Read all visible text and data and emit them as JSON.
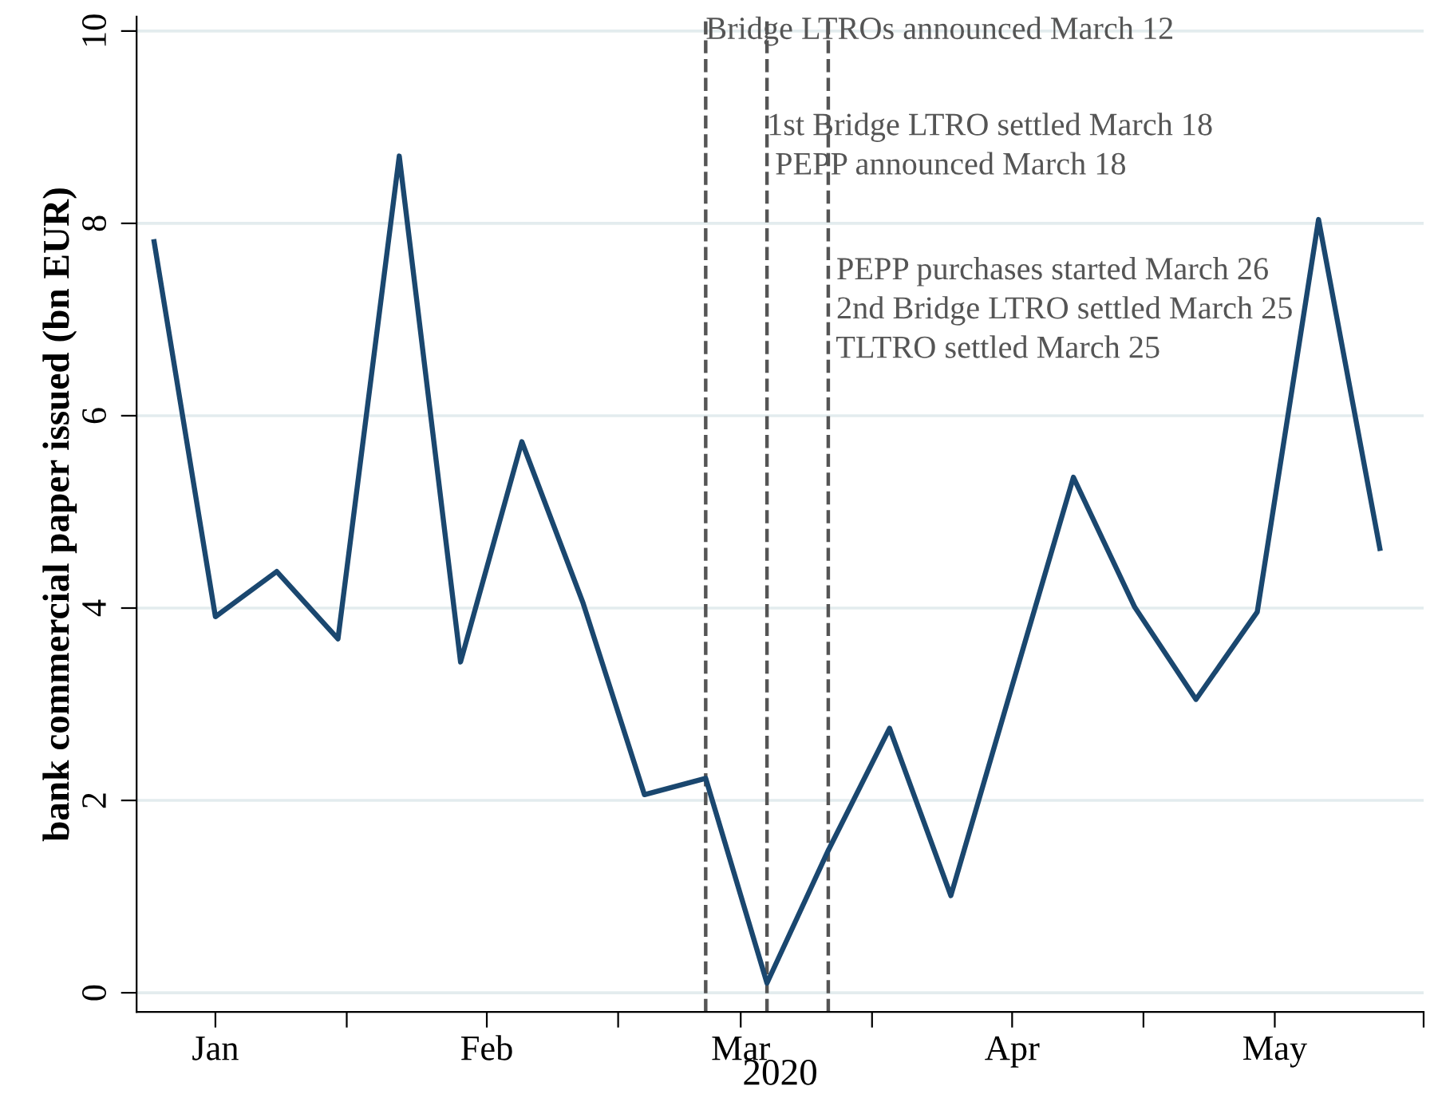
{
  "chart_data": {
    "type": "line",
    "xlabel": "2020",
    "ylabel": "bank commercial paper issued (bn EUR)",
    "x": [
      "2019-12-25",
      "2020-01-01",
      "2020-01-08",
      "2020-01-15",
      "2020-01-22",
      "2020-01-29",
      "2020-02-05",
      "2020-02-12",
      "2020-02-19",
      "2020-02-26",
      "2020-03-04",
      "2020-03-11",
      "2020-03-18",
      "2020-03-25",
      "2020-04-01",
      "2020-04-08",
      "2020-04-15",
      "2020-04-22",
      "2020-04-29",
      "2020-05-06",
      "2020-05-13"
    ],
    "series": [
      {
        "color": "#1a476f",
        "values": [
          7.81,
          3.91,
          4.38,
          3.68,
          8.7,
          3.44,
          5.73,
          4.05,
          2.06,
          2.23,
          0.1,
          1.48,
          2.75,
          1.01,
          3.19,
          5.36,
          4.01,
          3.05,
          3.96,
          8.04,
          4.62
        ]
      }
    ],
    "xlim": [
      "2019-12-23",
      "2020-05-18"
    ],
    "xticks": [
      {
        "value": "2020-01-01",
        "label": "Jan"
      },
      {
        "value": "2020-01-16",
        "label": null
      },
      {
        "value": "2020-02-01",
        "label": "Feb"
      },
      {
        "value": "2020-02-16",
        "label": null
      },
      {
        "value": "2020-03-01",
        "label": "Mar"
      },
      {
        "value": "2020-03-16",
        "label": null
      },
      {
        "value": "2020-04-01",
        "label": "Apr"
      },
      {
        "value": "2020-04-16",
        "label": null
      },
      {
        "value": "2020-05-01",
        "label": "May"
      },
      {
        "value": "2020-05-18",
        "label": null
      }
    ],
    "ylim": [
      -0.2,
      10.15
    ],
    "yticks": [
      0,
      2,
      4,
      6,
      8,
      10
    ],
    "grid": "y",
    "ref_lines": [
      {
        "axis": "x",
        "value": "2020-02-26",
        "color": "#555555",
        "line_style": "dashed",
        "label": "Bridge LTROs announced March 12"
      },
      {
        "axis": "x",
        "value": "2020-03-04",
        "color": "#555555",
        "line_style": "dashed",
        "label": "1st Bridge LTRO settled March 18\n PEPP announced March 18"
      },
      {
        "axis": "x",
        "value": "2020-03-11",
        "color": "#555555",
        "line_style": "dashed",
        "label": " PEPP purchases started March 26\n 2nd Bridge LTRO settled March 25\n TLTRO settled March 25"
      }
    ],
    "line_style": "solid",
    "marker": "none"
  }
}
